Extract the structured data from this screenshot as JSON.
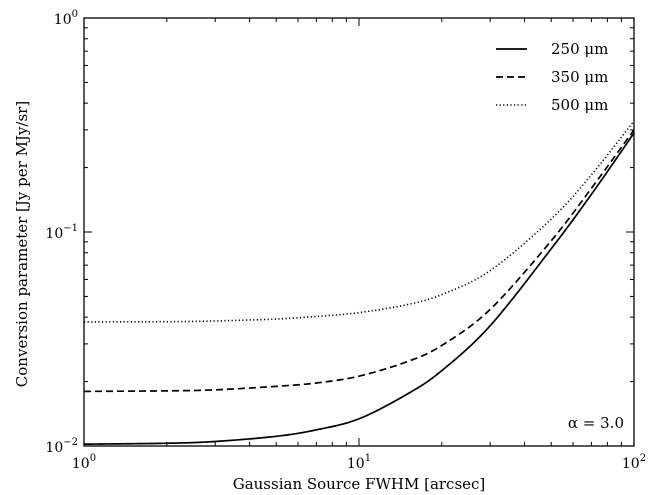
{
  "chart_data": {
    "type": "line",
    "xlabel": "Gaussian Source FWHM [arcsec]",
    "ylabel": "Conversion parameter [Jy per MJy/sr]",
    "xscale": "log",
    "yscale": "log",
    "xlim": [
      1,
      100
    ],
    "ylim": [
      0.01,
      1
    ],
    "x_ticks": [
      {
        "value": 1,
        "base": "10",
        "exp": "0"
      },
      {
        "value": 10,
        "base": "10",
        "exp": "1"
      },
      {
        "value": 100,
        "base": "10",
        "exp": "2"
      }
    ],
    "y_ticks": [
      {
        "value": 0.01,
        "base": "10",
        "exp": "−2"
      },
      {
        "value": 0.1,
        "base": "10",
        "exp": "−1"
      },
      {
        "value": 1,
        "base": "10",
        "exp": "0"
      }
    ],
    "grid": false,
    "legend_position": "top-right",
    "annotation": "α = 3.0",
    "series": [
      {
        "name": "250 μm",
        "style": "solid",
        "x": [
          1,
          2,
          3,
          5,
          7,
          10,
          15,
          20,
          30,
          50,
          70,
          100
        ],
        "y": [
          0.0102,
          0.0103,
          0.0105,
          0.0111,
          0.0119,
          0.0134,
          0.0175,
          0.0225,
          0.0365,
          0.0835,
          0.15,
          0.29
        ]
      },
      {
        "name": "350 μm",
        "style": "dashed",
        "x": [
          1,
          2,
          3,
          5,
          7,
          10,
          15,
          20,
          30,
          50,
          70,
          100
        ],
        "y": [
          0.018,
          0.0181,
          0.0183,
          0.019,
          0.0197,
          0.0212,
          0.0248,
          0.0295,
          0.0435,
          0.091,
          0.16,
          0.3
        ]
      },
      {
        "name": "500 μm",
        "style": "dotted",
        "x": [
          1,
          2,
          3,
          5,
          7,
          10,
          15,
          20,
          30,
          50,
          70,
          100
        ],
        "y": [
          0.038,
          0.0381,
          0.0384,
          0.0392,
          0.0403,
          0.042,
          0.0458,
          0.051,
          0.066,
          0.115,
          0.185,
          0.33
        ]
      }
    ]
  }
}
